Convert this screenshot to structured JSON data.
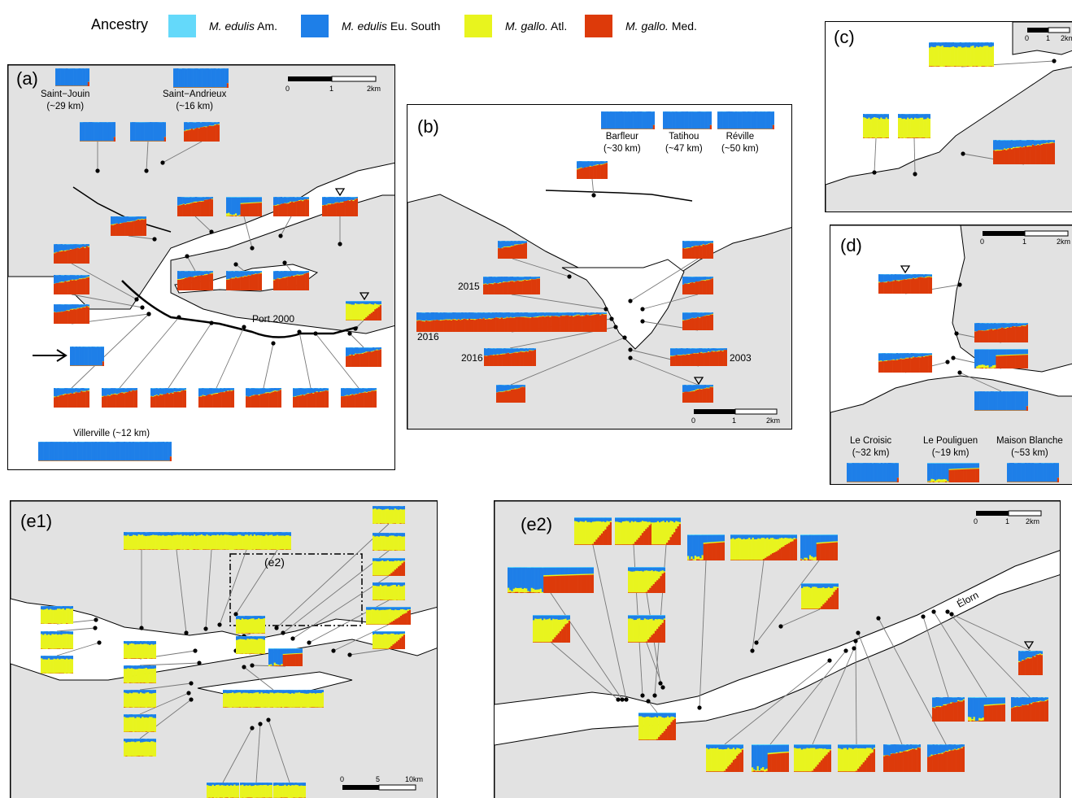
{
  "legend": {
    "title": "Ancestry",
    "items": [
      {
        "species": "M. edulis",
        "suffix": "Am.",
        "color": "#64d9fa"
      },
      {
        "species": "M. edulis",
        "suffix": "Eu. South",
        "color": "#1e7fe8"
      },
      {
        "species": "M. gallo.",
        "suffix": "Atl.",
        "color": "#e8f41e"
      },
      {
        "species": "M. gallo.",
        "suffix": "Med.",
        "color": "#dd3a0a"
      }
    ]
  },
  "panels": {
    "a": {
      "label": "(a)",
      "sites": [
        {
          "name": "Saint−Jouin",
          "dist": "(~29 km)"
        },
        {
          "name": "Saint−Andrieux",
          "dist": "(~16 km)"
        },
        {
          "name": "Villerville (~12 km)",
          "dist": ""
        }
      ],
      "place": "Port 2000",
      "scale": [
        "0",
        "1",
        "2km"
      ]
    },
    "b": {
      "label": "(b)",
      "sites": [
        {
          "name": "Barfleur",
          "dist": "(~30 km)"
        },
        {
          "name": "Tatihou",
          "dist": "(~47 km)"
        },
        {
          "name": "Réville",
          "dist": "(~50 km)"
        }
      ],
      "years": [
        "2015",
        "2016",
        "2016",
        "2003"
      ],
      "scale": [
        "0",
        "1",
        "2km"
      ]
    },
    "c": {
      "label": "(c)",
      "scale": [
        "0",
        "1",
        "2km"
      ]
    },
    "d": {
      "label": "(d)",
      "sites": [
        {
          "name": "Le Croisic",
          "dist": "(~32 km)"
        },
        {
          "name": "Le Pouliguen",
          "dist": "(~19 km)"
        },
        {
          "name": "Maison Blanche",
          "dist": "(~53 km)"
        }
      ],
      "scale": [
        "0",
        "1",
        "2km"
      ]
    },
    "e1": {
      "label": "(e1)",
      "inset": "(e2)",
      "scale": [
        "0",
        "5",
        "10km"
      ]
    },
    "e2": {
      "label": "(e2)",
      "river": "Élorn",
      "scale": [
        "0",
        "1",
        "2km"
      ]
    }
  }
}
